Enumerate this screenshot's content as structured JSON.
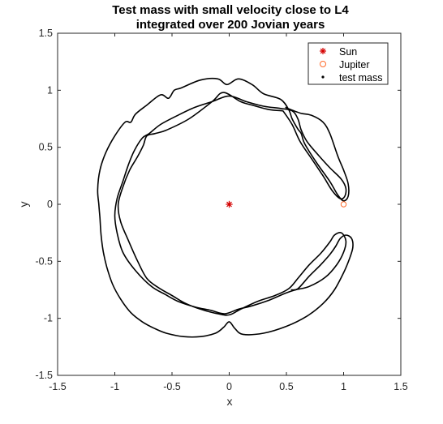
{
  "chart_data": {
    "type": "line",
    "title": [
      "Test mass with small velocity close to L4",
      "integrated over 200 Jovian years"
    ],
    "xlabel": "x",
    "ylabel": "y",
    "xlim": [
      -1.5,
      1.5
    ],
    "ylim": [
      -1.5,
      1.5
    ],
    "xticks": [
      -1.5,
      -1,
      -0.5,
      0,
      0.5,
      1,
      1.5
    ],
    "xtick_labels": [
      "-1.5",
      "-1",
      "-0.5",
      "0",
      "0.5",
      "1",
      "1.5"
    ],
    "yticks": [
      -1.5,
      -1,
      -0.5,
      0,
      0.5,
      1,
      1.5
    ],
    "ytick_labels": [
      "-1.5",
      "-1",
      "-0.5",
      "0",
      "0.5",
      "1",
      "1.5"
    ],
    "grid": false,
    "legend_position": "top-right",
    "legend": [
      "Sun",
      "Jupiter",
      "test mass"
    ],
    "series": [
      {
        "name": "Sun",
        "marker": "asterisk",
        "color": "#d40000",
        "points": [
          [
            0,
            0
          ]
        ]
      },
      {
        "name": "Jupiter",
        "marker": "circle",
        "color": "#ff6a2a",
        "points": [
          [
            1,
            0
          ]
        ]
      },
      {
        "name": "test mass",
        "marker": "dot",
        "color": "#000000",
        "outer_path": [
          [
            0.49,
            0.85
          ],
          [
            0.62,
            0.8
          ],
          [
            0.72,
            0.78
          ],
          [
            0.82,
            0.72
          ],
          [
            0.88,
            0.62
          ],
          [
            0.95,
            0.42
          ],
          [
            1.0,
            0.3
          ],
          [
            1.04,
            0.18
          ],
          [
            1.04,
            0.07
          ],
          [
            1.0,
            0.03
          ],
          [
            0.95,
            0.08
          ],
          [
            0.88,
            0.2
          ],
          [
            0.76,
            0.37
          ],
          [
            0.66,
            0.53
          ],
          [
            0.63,
            0.62
          ],
          [
            0.6,
            0.66
          ],
          [
            0.55,
            0.75
          ],
          [
            0.52,
            0.83
          ],
          [
            0.45,
            0.92
          ],
          [
            0.3,
            0.97
          ],
          [
            0.2,
            1.05
          ],
          [
            0.08,
            1.1
          ],
          [
            -0.02,
            1.05
          ],
          [
            -0.1,
            1.1
          ],
          [
            -0.25,
            1.09
          ],
          [
            -0.42,
            1.02
          ],
          [
            -0.48,
            1.0
          ],
          [
            -0.53,
            0.93
          ],
          [
            -0.6,
            0.96
          ],
          [
            -0.72,
            0.87
          ],
          [
            -0.82,
            0.79
          ],
          [
            -0.86,
            0.72
          ],
          [
            -0.91,
            0.72
          ],
          [
            -1.0,
            0.6
          ],
          [
            -1.08,
            0.45
          ],
          [
            -1.13,
            0.3
          ],
          [
            -1.15,
            0.13
          ],
          [
            -1.14,
            0.0
          ],
          [
            -1.13,
            -0.12
          ],
          [
            -1.12,
            -0.27
          ],
          [
            -1.1,
            -0.42
          ],
          [
            -1.07,
            -0.55
          ],
          [
            -1.02,
            -0.7
          ],
          [
            -0.95,
            -0.83
          ],
          [
            -0.86,
            -0.95
          ],
          [
            -0.76,
            -1.03
          ],
          [
            -0.65,
            -1.09
          ],
          [
            -0.55,
            -1.13
          ],
          [
            -0.4,
            -1.16
          ],
          [
            -0.25,
            -1.16
          ],
          [
            -0.12,
            -1.13
          ],
          [
            -0.05,
            -1.08
          ],
          [
            0.0,
            -1.03
          ],
          [
            0.05,
            -1.09
          ],
          [
            0.12,
            -1.14
          ],
          [
            0.3,
            -1.13
          ],
          [
            0.5,
            -1.07
          ],
          [
            0.68,
            -0.98
          ],
          [
            0.82,
            -0.87
          ],
          [
            0.92,
            -0.75
          ],
          [
            1.0,
            -0.6
          ],
          [
            1.05,
            -0.48
          ],
          [
            1.08,
            -0.38
          ],
          [
            1.07,
            -0.3
          ],
          [
            1.02,
            -0.27
          ],
          [
            0.97,
            -0.3
          ],
          [
            0.93,
            -0.37
          ],
          [
            0.88,
            -0.44
          ],
          [
            0.8,
            -0.53
          ],
          [
            0.7,
            -0.63
          ],
          [
            0.6,
            -0.74
          ],
          [
            0.54,
            -0.75
          ]
        ],
        "inner_path": [
          [
            0.47,
            0.82
          ],
          [
            0.35,
            0.83
          ],
          [
            0.2,
            0.87
          ],
          [
            0.1,
            0.9
          ],
          [
            -0.05,
            0.98
          ],
          [
            -0.15,
            0.9
          ],
          [
            -0.35,
            0.75
          ],
          [
            -0.55,
            0.65
          ],
          [
            -0.65,
            0.62
          ],
          [
            -0.72,
            0.6
          ],
          [
            -0.75,
            0.52
          ],
          [
            -0.8,
            0.42
          ],
          [
            -0.87,
            0.3
          ],
          [
            -0.93,
            0.15
          ],
          [
            -0.97,
            0.0
          ],
          [
            -0.95,
            -0.15
          ],
          [
            -0.88,
            -0.32
          ],
          [
            -0.8,
            -0.5
          ],
          [
            -0.72,
            -0.65
          ],
          [
            -0.62,
            -0.73
          ],
          [
            -0.5,
            -0.8
          ],
          [
            -0.38,
            -0.87
          ],
          [
            -0.25,
            -0.92
          ],
          [
            -0.1,
            -0.96
          ],
          [
            0.0,
            -0.97
          ],
          [
            0.1,
            -0.92
          ],
          [
            0.25,
            -0.85
          ],
          [
            0.4,
            -0.8
          ],
          [
            0.52,
            -0.74
          ],
          [
            0.6,
            -0.65
          ],
          [
            0.7,
            -0.53
          ],
          [
            0.8,
            -0.43
          ],
          [
            0.88,
            -0.33
          ],
          [
            0.92,
            -0.27
          ],
          [
            0.98,
            -0.25
          ],
          [
            1.02,
            -0.32
          ],
          [
            1.0,
            -0.42
          ],
          [
            0.94,
            -0.53
          ],
          [
            0.84,
            -0.64
          ],
          [
            0.7,
            -0.72
          ],
          [
            0.58,
            -0.75
          ],
          [
            0.49,
            -0.78
          ],
          [
            0.35,
            -0.84
          ],
          [
            0.2,
            -0.89
          ],
          [
            0.08,
            -0.92
          ],
          [
            -0.04,
            -0.96
          ],
          [
            -0.16,
            -0.93
          ],
          [
            -0.3,
            -0.9
          ],
          [
            -0.45,
            -0.85
          ],
          [
            -0.56,
            -0.79
          ],
          [
            -0.68,
            -0.72
          ],
          [
            -0.82,
            -0.58
          ],
          [
            -0.93,
            -0.42
          ],
          [
            -0.98,
            -0.25
          ],
          [
            -1.0,
            -0.1
          ],
          [
            -0.98,
            0.05
          ],
          [
            -0.93,
            0.2
          ],
          [
            -0.88,
            0.35
          ],
          [
            -0.83,
            0.47
          ],
          [
            -0.76,
            0.58
          ],
          [
            -0.7,
            0.62
          ],
          [
            -0.6,
            0.7
          ],
          [
            -0.45,
            0.78
          ],
          [
            -0.3,
            0.85
          ],
          [
            -0.15,
            0.9
          ],
          [
            0.0,
            0.95
          ],
          [
            0.15,
            0.9
          ],
          [
            0.3,
            0.86
          ],
          [
            0.45,
            0.84
          ],
          [
            0.55,
            0.82
          ],
          [
            0.6,
            0.75
          ],
          [
            0.63,
            0.65
          ],
          [
            0.68,
            0.55
          ],
          [
            0.78,
            0.43
          ],
          [
            0.88,
            0.32
          ],
          [
            0.98,
            0.22
          ],
          [
            1.02,
            0.14
          ],
          [
            1.01,
            0.07
          ],
          [
            0.97,
            0.05
          ],
          [
            0.9,
            0.12
          ],
          [
            0.82,
            0.25
          ],
          [
            0.72,
            0.4
          ],
          [
            0.62,
            0.55
          ],
          [
            0.55,
            0.7
          ],
          [
            0.47,
            0.82
          ]
        ]
      }
    ]
  }
}
